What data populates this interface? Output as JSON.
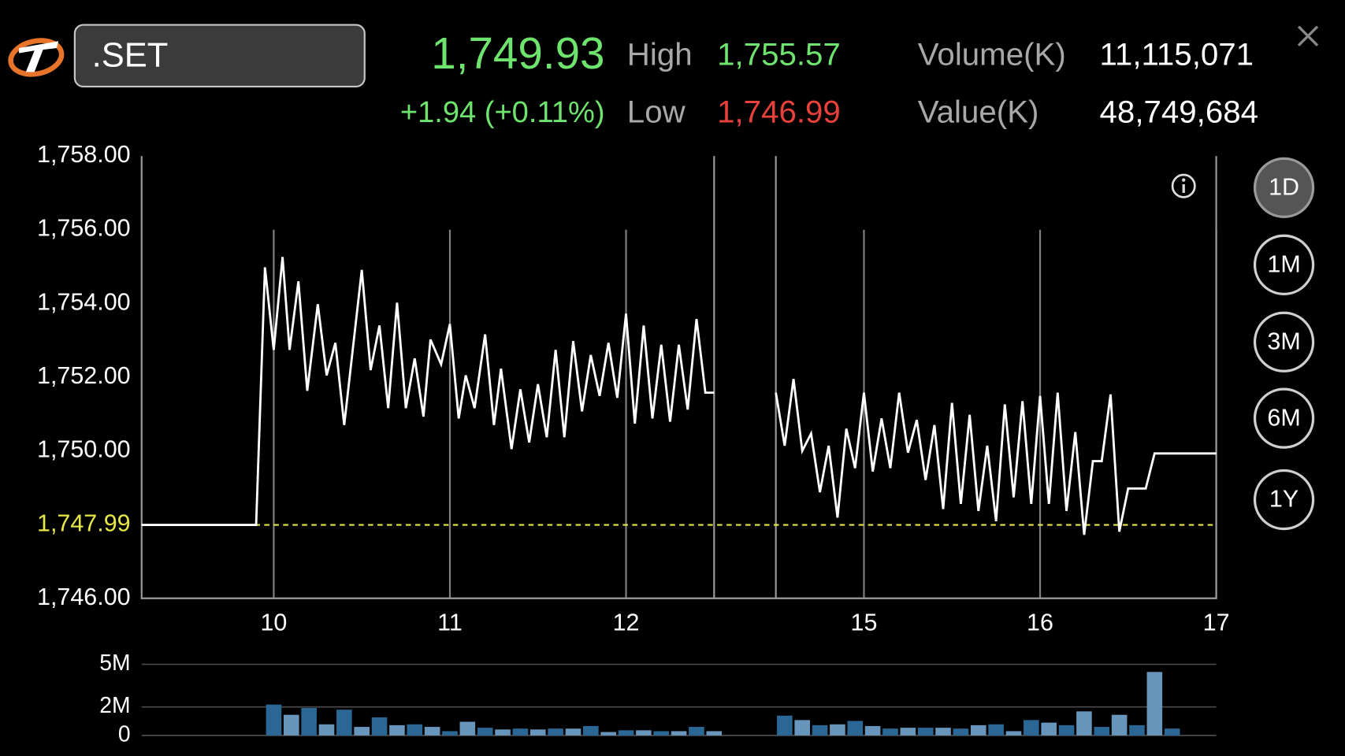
{
  "header": {
    "symbol": ".SET",
    "last": "1,749.93",
    "change": "+1.94 (+0.11%)",
    "high_label": "High",
    "high": "1,755.57",
    "low_label": "Low",
    "low": "1,746.99",
    "volume_label": "Volume(K)",
    "volume": "11,115,071",
    "value_label": "Value(K)",
    "value": "48,749,684"
  },
  "periods": {
    "items": [
      "1D",
      "1M",
      "3M",
      "6M",
      "1Y"
    ],
    "selected": 0
  },
  "chart_data": [
    {
      "type": "line",
      "x": [
        9.25,
        9.9,
        9.95,
        10,
        10.05,
        10.09,
        10.14,
        10.19,
        10.25,
        10.3,
        10.35,
        10.4,
        10.5,
        10.55,
        10.6,
        10.65,
        10.7,
        10.75,
        10.8,
        10.85,
        10.89,
        10.95,
        11,
        11.05,
        11.09,
        11.14,
        11.2,
        11.25,
        11.29,
        11.35,
        11.4,
        11.45,
        11.5,
        11.55,
        11.6,
        11.65,
        11.7,
        11.75,
        11.8,
        11.85,
        11.9,
        11.95,
        12,
        12.05,
        12.1,
        12.15,
        12.2,
        12.25,
        12.3,
        12.35,
        12.4,
        12.45,
        12.5,
        null,
        14.5,
        14.55,
        14.6,
        14.65,
        14.7,
        14.75,
        14.8,
        14.85,
        14.9,
        14.95,
        15,
        15.05,
        15.1,
        15.15,
        15.2,
        15.25,
        15.3,
        15.35,
        15.4,
        15.45,
        15.5,
        15.55,
        15.6,
        15.65,
        15.7,
        15.75,
        15.8,
        15.85,
        15.9,
        15.95,
        16,
        16.05,
        16.1,
        16.15,
        16.2,
        16.25,
        16.3,
        16.35,
        16.4,
        16.45,
        16.5,
        16.6,
        16.65,
        17
      ],
      "values": [
        1747.99,
        1747.99,
        1754.98,
        1752.74,
        1755.26,
        1752.74,
        1754.6,
        1751.63,
        1753.98,
        1752.05,
        1752.93,
        1750.7,
        1754.91,
        1752.19,
        1753.4,
        1751.16,
        1754.02,
        1751.16,
        1752.51,
        1750.93,
        1753.02,
        1752.35,
        1753.44,
        1750.88,
        1752.05,
        1751.16,
        1753.16,
        1750.7,
        1752.23,
        1750.05,
        1751.67,
        1750.23,
        1751.81,
        1750.37,
        1752.74,
        1750.37,
        1752.98,
        1751.07,
        1752.6,
        1751.49,
        1752.93,
        1751.44,
        1753.72,
        1750.74,
        1753.4,
        1750.88,
        1752.88,
        1750.79,
        1752.88,
        1751.12,
        1753.58,
        1751.58,
        1751.58,
        null,
        1751.58,
        1750.14,
        1751.95,
        1750,
        1750.47,
        1748.88,
        1750.14,
        1748.19,
        1750.6,
        1749.53,
        1751.58,
        1749.44,
        1750.88,
        1749.53,
        1751.58,
        1749.95,
        1750.84,
        1749.21,
        1750.7,
        1748.42,
        1751.3,
        1748.56,
        1750.98,
        1748.37,
        1750.14,
        1748.09,
        1751.26,
        1748.74,
        1751.35,
        1748.56,
        1751.49,
        1748.56,
        1751.58,
        1748.37,
        1750.51,
        1747.72,
        1749.72,
        1749.72,
        1751.53,
        1747.81,
        1748.98,
        1748.98,
        1749.93,
        1749.93
      ],
      "color": "#ffffff",
      "reference_line": {
        "value": 1747.99,
        "label": "1,747.99",
        "color": "#e6e64a"
      },
      "xlim": [
        9.25,
        17
      ],
      "xticks": [
        10,
        11,
        12,
        15,
        16,
        17
      ],
      "breaks": [
        12.5,
        14.5
      ],
      "ylim": [
        1746,
        1758
      ],
      "yticks": [
        {
          "value": 1746,
          "label": "1,746.00"
        },
        {
          "value": 1750,
          "label": "1,750.00"
        },
        {
          "value": 1752,
          "label": "1,752.00"
        },
        {
          "value": 1754,
          "label": "1,754.00"
        },
        {
          "value": 1756,
          "label": "1,756.00"
        },
        {
          "value": 1758,
          "label": "1,758.00"
        }
      ],
      "grid": true
    },
    {
      "type": "bar",
      "x": [
        10,
        10.1,
        10.2,
        10.3,
        10.4,
        10.5,
        10.6,
        10.7,
        10.8,
        10.9,
        11,
        11.1,
        11.2,
        11.3,
        11.4,
        11.5,
        11.6,
        11.7,
        11.8,
        11.9,
        12,
        12.1,
        12.2,
        12.3,
        12.4,
        12.5,
        14.55,
        14.65,
        14.75,
        14.85,
        14.95,
        15.05,
        15.15,
        15.25,
        15.35,
        15.45,
        15.55,
        15.65,
        15.75,
        15.85,
        15.95,
        16.05,
        16.15,
        16.25,
        16.35,
        16.45,
        16.55,
        16.65,
        16.75
      ],
      "values": [
        2170000,
        1450000,
        1930000,
        780000,
        1810000,
        600000,
        1270000,
        720000,
        780000,
        600000,
        300000,
        960000,
        540000,
        420000,
        480000,
        420000,
        480000,
        480000,
        660000,
        240000,
        360000,
        360000,
        300000,
        300000,
        600000,
        300000,
        1390000,
        1080000,
        720000,
        780000,
        1020000,
        660000,
        480000,
        540000,
        540000,
        540000,
        480000,
        720000,
        780000,
        300000,
        1080000,
        900000,
        720000,
        1690000,
        600000,
        1450000,
        720000,
        4460000,
        480000
      ],
      "colors": [
        "#2b6795",
        "#6895bb"
      ],
      "xlim": [
        9.25,
        17
      ],
      "breaks": [
        12.5,
        14.5
      ],
      "ylim": [
        0,
        5000000
      ],
      "yticks": [
        0,
        {
          "value": 2000000,
          "label": "2M"
        },
        {
          "value": 5000000,
          "label": "5M"
        }
      ],
      "grid": true
    }
  ]
}
